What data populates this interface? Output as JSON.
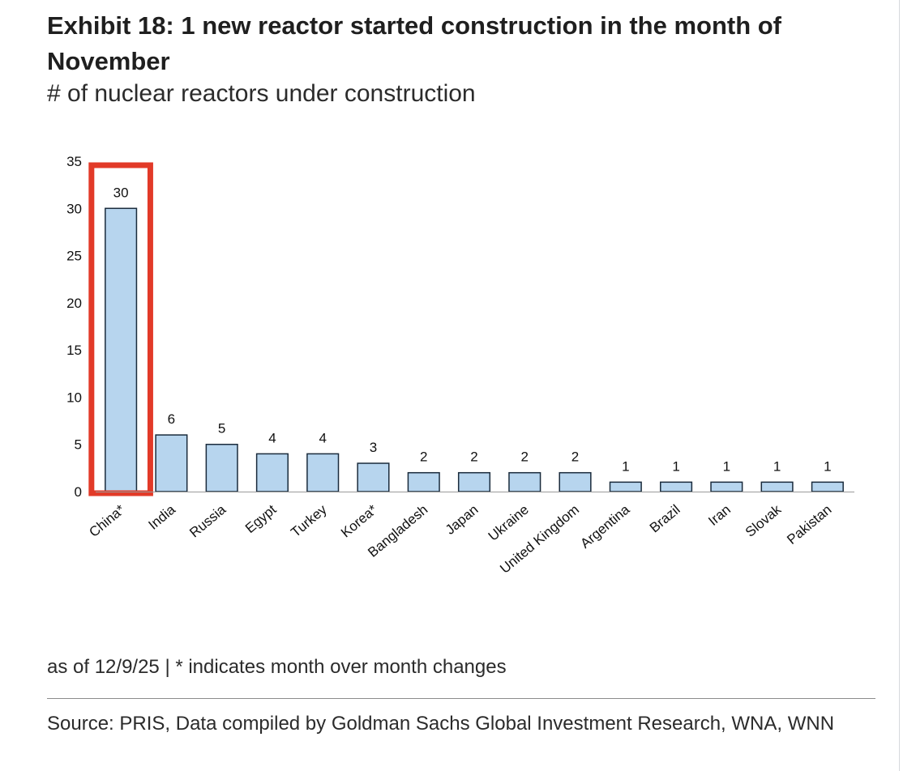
{
  "header": {
    "title": "Exhibit 18: 1 new reactor started construction in the month of November",
    "subtitle": "# of nuclear reactors under construction"
  },
  "footer": {
    "note": "as of 12/9/25 | * indicates month over month changes",
    "source": "Source: PRIS, Data compiled by Goldman Sachs Global Investment Research, WNA, WNN"
  },
  "colors": {
    "bar_fill": "#b7d5ee",
    "bar_stroke": "#1a2b3c",
    "highlight": "#e23a28"
  },
  "chart_data": {
    "type": "bar",
    "title": "# of nuclear reactors under construction",
    "xlabel": "",
    "ylabel": "",
    "categories": [
      "China*",
      "India",
      "Russia",
      "Egypt",
      "Turkey",
      "Korea*",
      "Bangladesh",
      "Japan",
      "Ukraine",
      "United Kingdom",
      "Argentina",
      "Brazil",
      "Iran",
      "Slovak",
      "Pakistan"
    ],
    "values": [
      30,
      6,
      5,
      4,
      4,
      3,
      2,
      2,
      2,
      2,
      1,
      1,
      1,
      1,
      1
    ],
    "ylim": [
      0,
      35
    ],
    "yticks": [
      0,
      5,
      10,
      15,
      20,
      25,
      30,
      35
    ],
    "grid": false,
    "highlighted_category": "China*"
  }
}
